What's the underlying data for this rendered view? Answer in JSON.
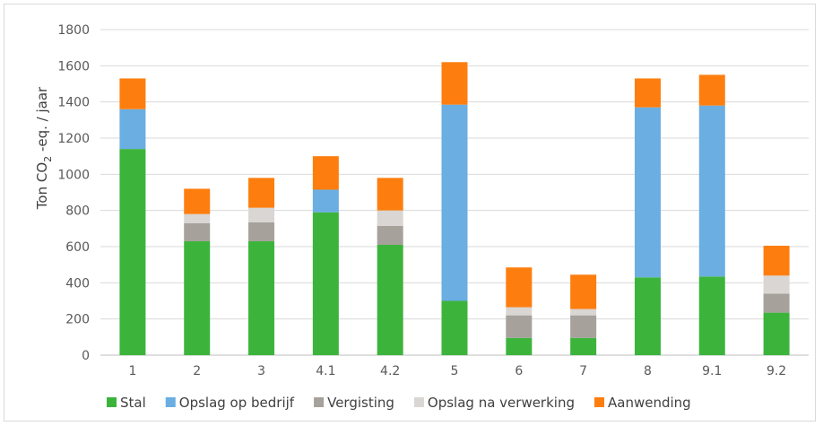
{
  "chart_data": {
    "type": "bar",
    "stacked": true,
    "categories": [
      "1",
      "2",
      "3",
      "4.1",
      "4.2",
      "5",
      "6",
      "7",
      "8",
      "9.1",
      "9.2"
    ],
    "series": [
      {
        "name": "Stal",
        "color": "#3cb43c",
        "values": [
          1140,
          630,
          630,
          790,
          610,
          300,
          95,
          95,
          430,
          435,
          235
        ]
      },
      {
        "name": "Opslag op bedrijf",
        "color": "#6aaee2",
        "values": [
          220,
          0,
          0,
          125,
          0,
          1085,
          0,
          0,
          940,
          945,
          0
        ]
      },
      {
        "name": "Vergisting",
        "color": "#a6a19b",
        "values": [
          0,
          100,
          105,
          0,
          105,
          0,
          125,
          125,
          0,
          0,
          105
        ]
      },
      {
        "name": "Opslag na verwerking",
        "color": "#d9d6d3",
        "values": [
          0,
          50,
          80,
          0,
          85,
          0,
          45,
          35,
          0,
          0,
          100
        ]
      },
      {
        "name": "Aanwending",
        "color": "#fd7e0f",
        "values": [
          170,
          140,
          165,
          185,
          180,
          235,
          220,
          190,
          160,
          170,
          165
        ]
      }
    ],
    "ylabel_main": "Ton CO",
    "ylabel_sub": "2",
    "ylabel_rest": " -eq. / jaar",
    "ylim": [
      0,
      1800
    ],
    "yticks": [
      0,
      200,
      400,
      600,
      800,
      1000,
      1200,
      1400,
      1600,
      1800
    ],
    "grid": true,
    "legend_position": "bottom"
  }
}
